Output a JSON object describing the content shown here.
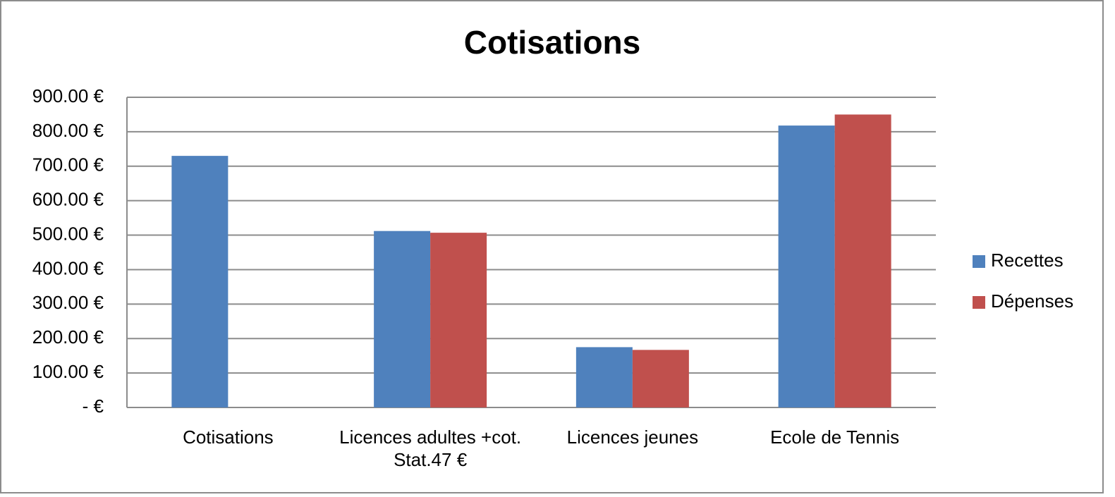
{
  "chart_data": {
    "type": "bar",
    "title": "Cotisations",
    "categories": [
      "Cotisations",
      "Licences adultes +cot. Stat.47 €",
      "Licences jeunes",
      "Ecole de Tennis"
    ],
    "series": [
      {
        "name": "Recettes",
        "color": "#4f81bd",
        "values": [
          730,
          512,
          175,
          818
        ]
      },
      {
        "name": "Dépenses",
        "color": "#c0504d",
        "values": [
          0,
          507,
          167,
          850
        ]
      }
    ],
    "ylim": [
      0,
      900
    ],
    "yticks": [
      {
        "value": 0,
        "label": "-  €"
      },
      {
        "value": 100,
        "label": "100.00 €"
      },
      {
        "value": 200,
        "label": "200.00 €"
      },
      {
        "value": 300,
        "label": "300.00 €"
      },
      {
        "value": 400,
        "label": "400.00 €"
      },
      {
        "value": 500,
        "label": "500.00 €"
      },
      {
        "value": 600,
        "label": "600.00 €"
      },
      {
        "value": 700,
        "label": "700.00 €"
      },
      {
        "value": 800,
        "label": "800.00 €"
      },
      {
        "value": 900,
        "label": "900.00 €"
      }
    ],
    "grid": true,
    "legend": "right"
  }
}
